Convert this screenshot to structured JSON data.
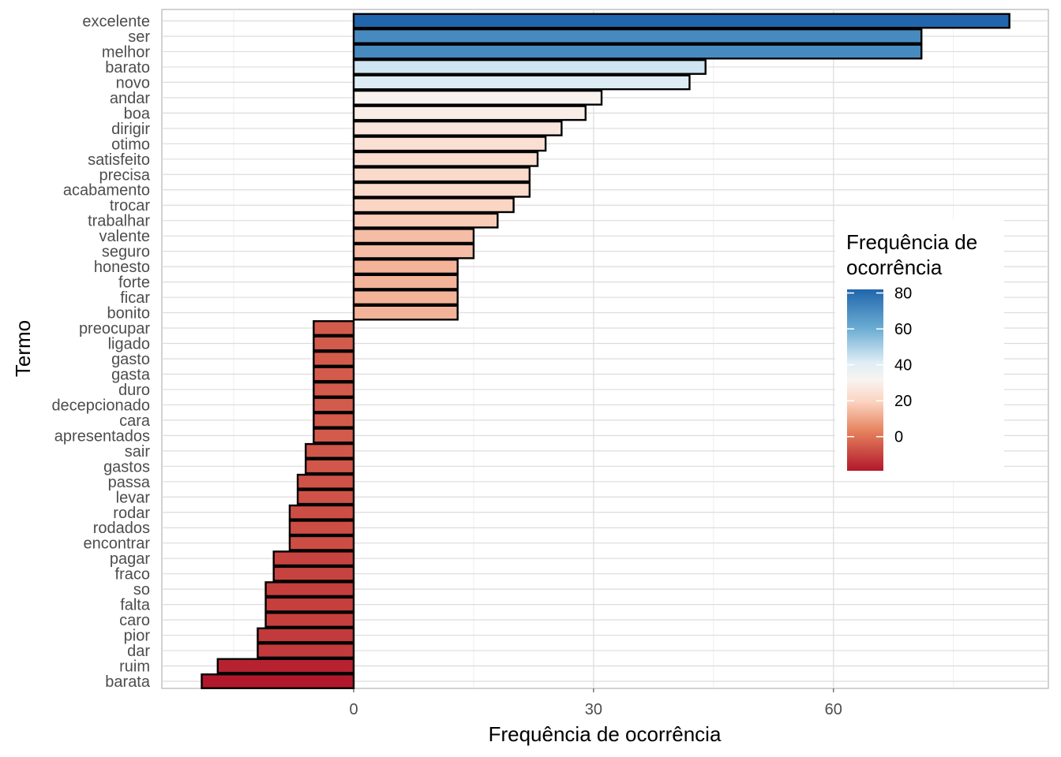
{
  "chart_data": {
    "type": "bar",
    "orientation": "horizontal",
    "xlabel": "Frequência de ocorrência",
    "ylabel": "Termo",
    "xlim": [
      -24,
      87
    ],
    "xticks": [
      0,
      30,
      60
    ],
    "grid": true,
    "legend": {
      "title_lines": [
        "Frequência de",
        "ocorrência"
      ],
      "placement": "right-inside",
      "range": [
        -19,
        82
      ],
      "ticks": [
        80,
        60,
        40,
        20,
        0
      ],
      "palette": "RdBu"
    },
    "categories": [
      "excelente",
      "ser",
      "melhor",
      "barato",
      "novo",
      "andar",
      "boa",
      "dirigir",
      "otimo",
      "satisfeito",
      "precisa",
      "acabamento",
      "trocar",
      "trabalhar",
      "valente",
      "seguro",
      "honesto",
      "forte",
      "ficar",
      "bonito",
      "preocupar",
      "ligado",
      "gasto",
      "gasta",
      "duro",
      "decepcionado",
      "cara",
      "apresentados",
      "sair",
      "gastos",
      "passa",
      "levar",
      "rodar",
      "rodados",
      "encontrar",
      "pagar",
      "fraco",
      "so",
      "falta",
      "caro",
      "pior",
      "dar",
      "ruim",
      "barata"
    ],
    "values": [
      82,
      71,
      71,
      44,
      42,
      31,
      29,
      26,
      24,
      23,
      22,
      22,
      20,
      18,
      15,
      15,
      13,
      13,
      13,
      13,
      -5,
      -5,
      -5,
      -5,
      -5,
      -5,
      -5,
      -5,
      -6,
      -6,
      -7,
      -7,
      -8,
      -8,
      -8,
      -10,
      -10,
      -11,
      -11,
      -11,
      -12,
      -12,
      -17,
      -19
    ]
  }
}
